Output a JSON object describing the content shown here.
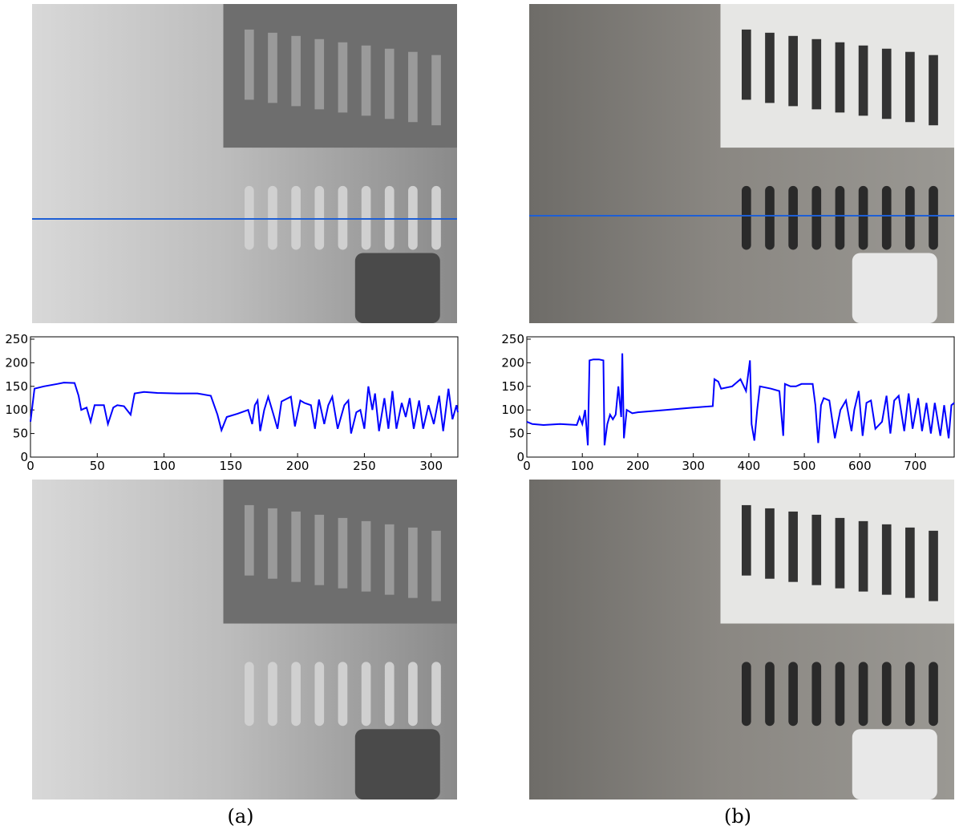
{
  "chart_data": [
    {
      "type": "line",
      "color": "#0000ff",
      "x": [
        0,
        3,
        10,
        20,
        25,
        33,
        36,
        38,
        42,
        45,
        48,
        55,
        58,
        62,
        65,
        70,
        75,
        78,
        85,
        95,
        110,
        125,
        135,
        140,
        143,
        147,
        155,
        163,
        166,
        168,
        170,
        172,
        175,
        178,
        182,
        185,
        188,
        195,
        198,
        202,
        205,
        210,
        213,
        216,
        220,
        223,
        226,
        230,
        235,
        238,
        240,
        244,
        247,
        250,
        253,
        256,
        258,
        261,
        265,
        268,
        271,
        274,
        278,
        281,
        284,
        287,
        291,
        294,
        298,
        302,
        306,
        309,
        313,
        316,
        319,
        320
      ],
      "values": [
        75,
        145,
        150,
        155,
        158,
        157,
        130,
        100,
        105,
        75,
        110,
        110,
        70,
        105,
        110,
        108,
        90,
        135,
        138,
        136,
        135,
        135,
        130,
        90,
        57,
        85,
        92,
        100,
        70,
        110,
        120,
        55,
        100,
        128,
        90,
        60,
        118,
        128,
        65,
        120,
        115,
        110,
        60,
        122,
        70,
        110,
        128,
        60,
        110,
        120,
        50,
        95,
        100,
        60,
        150,
        100,
        135,
        55,
        125,
        60,
        140,
        60,
        115,
        85,
        125,
        60,
        120,
        60,
        110,
        70,
        130,
        55,
        145,
        80,
        110,
        95
      ],
      "xlim": [
        0,
        320
      ],
      "ylim": [
        0,
        255
      ],
      "xticks": [
        0,
        50,
        100,
        150,
        200,
        250,
        300
      ],
      "yticks": [
        0,
        50,
        100,
        150,
        200,
        250
      ]
    },
    {
      "type": "line",
      "color": "#0000ff",
      "x": [
        0,
        10,
        30,
        60,
        90,
        95,
        100,
        105,
        110,
        113,
        120,
        130,
        138,
        140,
        145,
        150,
        155,
        160,
        165,
        170,
        172,
        175,
        180,
        190,
        200,
        250,
        300,
        335,
        338,
        345,
        350,
        370,
        385,
        395,
        402,
        405,
        410,
        415,
        420,
        440,
        455,
        462,
        465,
        475,
        485,
        495,
        515,
        520,
        525,
        530,
        535,
        545,
        555,
        565,
        575,
        585,
        590,
        598,
        605,
        612,
        620,
        628,
        640,
        648,
        655,
        662,
        670,
        680,
        688,
        695,
        705,
        712,
        720,
        728,
        735,
        745,
        752,
        760,
        765,
        770
      ],
      "values": [
        75,
        70,
        68,
        70,
        68,
        85,
        70,
        100,
        25,
        205,
        207,
        207,
        205,
        25,
        70,
        90,
        80,
        90,
        150,
        85,
        220,
        40,
        100,
        93,
        95,
        100,
        105,
        108,
        165,
        160,
        145,
        150,
        165,
        140,
        205,
        70,
        35,
        100,
        150,
        145,
        140,
        45,
        155,
        150,
        150,
        155,
        155,
        110,
        30,
        110,
        125,
        120,
        40,
        100,
        120,
        55,
        100,
        140,
        45,
        115,
        120,
        60,
        75,
        130,
        50,
        120,
        130,
        55,
        135,
        60,
        125,
        55,
        115,
        50,
        115,
        45,
        110,
        40,
        110,
        115
      ],
      "xlim": [
        0,
        770
      ],
      "ylim": [
        0,
        255
      ],
      "xticks": [
        0,
        100,
        200,
        300,
        400,
        500,
        600,
        700
      ],
      "yticks": [
        0,
        50,
        100,
        150,
        200,
        250
      ]
    }
  ],
  "figure": {
    "captions": [
      "(a)",
      "(b)"
    ]
  }
}
